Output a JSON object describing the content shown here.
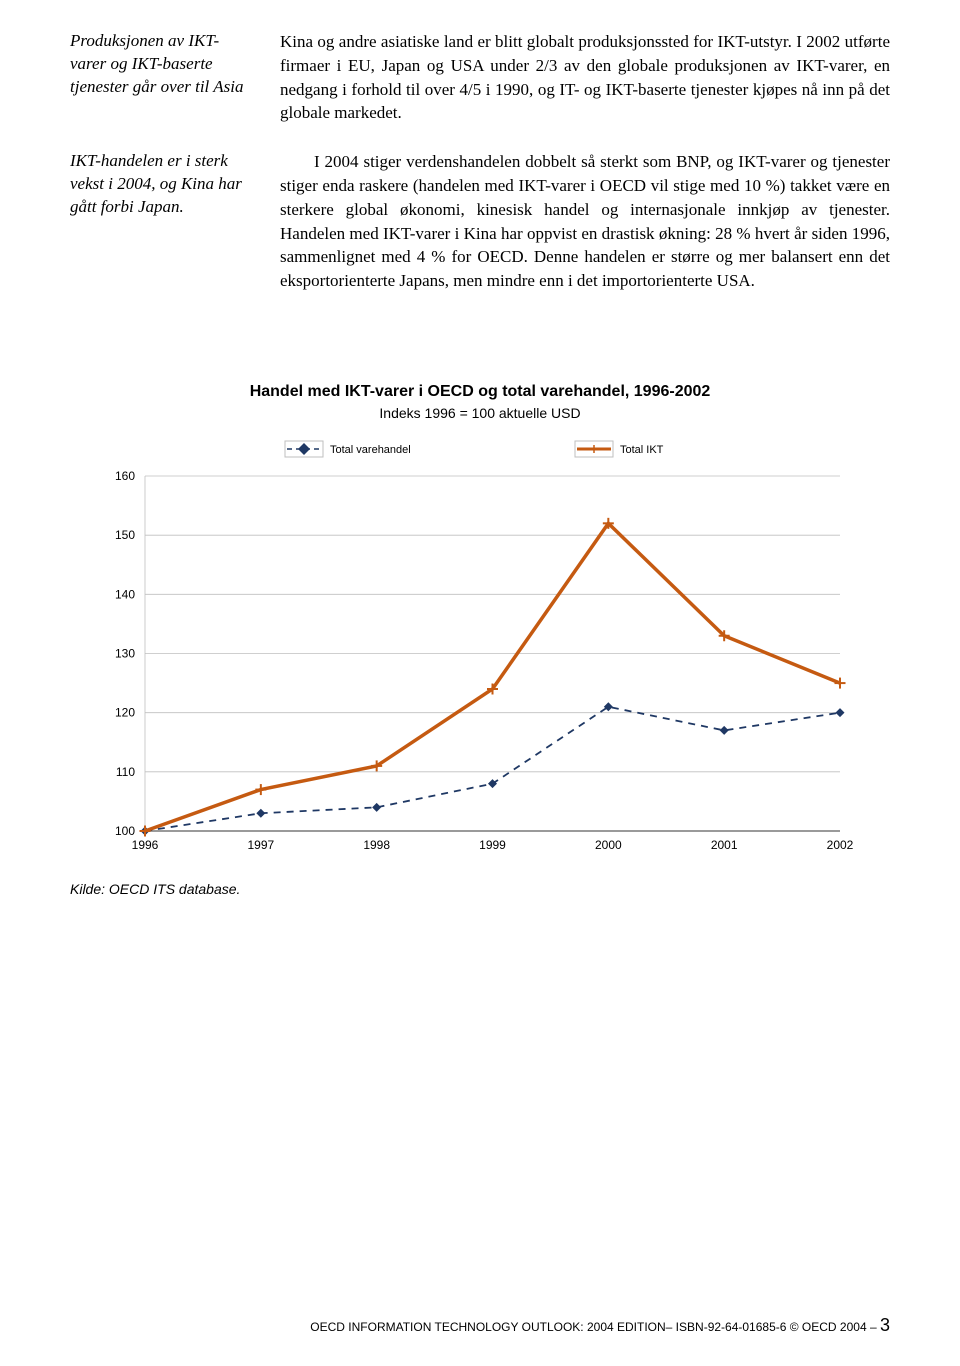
{
  "sections": [
    {
      "side": "Produksjonen av IKT-varer og IKT-baserte tjenester går over til Asia",
      "body": "Kina og andre asiatiske land er blitt globalt produksjonssted for IKT-utstyr. I 2002 utførte firmaer i EU, Japan og USA under 2/3 av den globale produksjonen av IKT-varer, en nedgang i forhold til over 4/5 i 1990, og IT- og IKT-baserte tjenester kjøpes nå inn på det globale markedet."
    },
    {
      "side": "IKT-handelen er i sterk vekst i 2004, og Kina har gått forbi Japan.",
      "body": "I 2004 stiger verdenshandelen dobbelt så sterkt som BNP, og IKT-varer og tjenester stiger enda raskere (handelen med IKT-varer i OECD vil stige med 10 %) takket være en sterkere global økonomi, kinesisk handel og internasjonale innkjøp av tjenester. Handelen med IKT-varer i Kina har oppvist en drastisk økning: 28 % hvert år siden 1996, sammenlignet med 4 % for OECD. Denne handelen er større og mer balansert enn det eksportorienterte Japans, men mindre enn i det importorienterte USA."
    }
  ],
  "chart": {
    "title": "Handel med IKT-varer i OECD og total varehandel, 1996-2002",
    "subtitle": "Indeks 1996 = 100 aktuelle USD",
    "type": "line",
    "legend": [
      {
        "label": "Total varehandel",
        "color": "#1f3864",
        "dash": "6 5",
        "marker": "diamond"
      },
      {
        "label": "Total IKT",
        "color": "#c55a11",
        "dash": "none",
        "marker": "plus"
      }
    ],
    "x_categories": [
      "1996",
      "1997",
      "1998",
      "1999",
      "2000",
      "2001",
      "2002"
    ],
    "ylim": [
      100,
      160
    ],
    "ytick_step": 10,
    "series": {
      "total_varehandel": [
        100,
        103,
        104,
        108,
        121,
        117,
        120
      ],
      "total_ikt": [
        100,
        107,
        111,
        124,
        152,
        133,
        125
      ]
    },
    "colors": {
      "varehandel": "#1f3864",
      "ikt": "#c55a11",
      "grid": "#bfbfbf",
      "text": "#000000",
      "background": "#ffffff"
    },
    "line_width_varehandel": 1.8,
    "line_width_ikt": 3.5,
    "marker_size": 9,
    "label_fontsize": 12,
    "legend_fontsize": 11,
    "legend_position": "top-center"
  },
  "source": "Kilde: OECD ITS database.",
  "footer": {
    "text": "OECD INFORMATION TECHNOLOGY OUTLOOK: 2004 EDITION– ISBN-92-64-01685-6 © OECD 2004 –",
    "page": "3"
  }
}
